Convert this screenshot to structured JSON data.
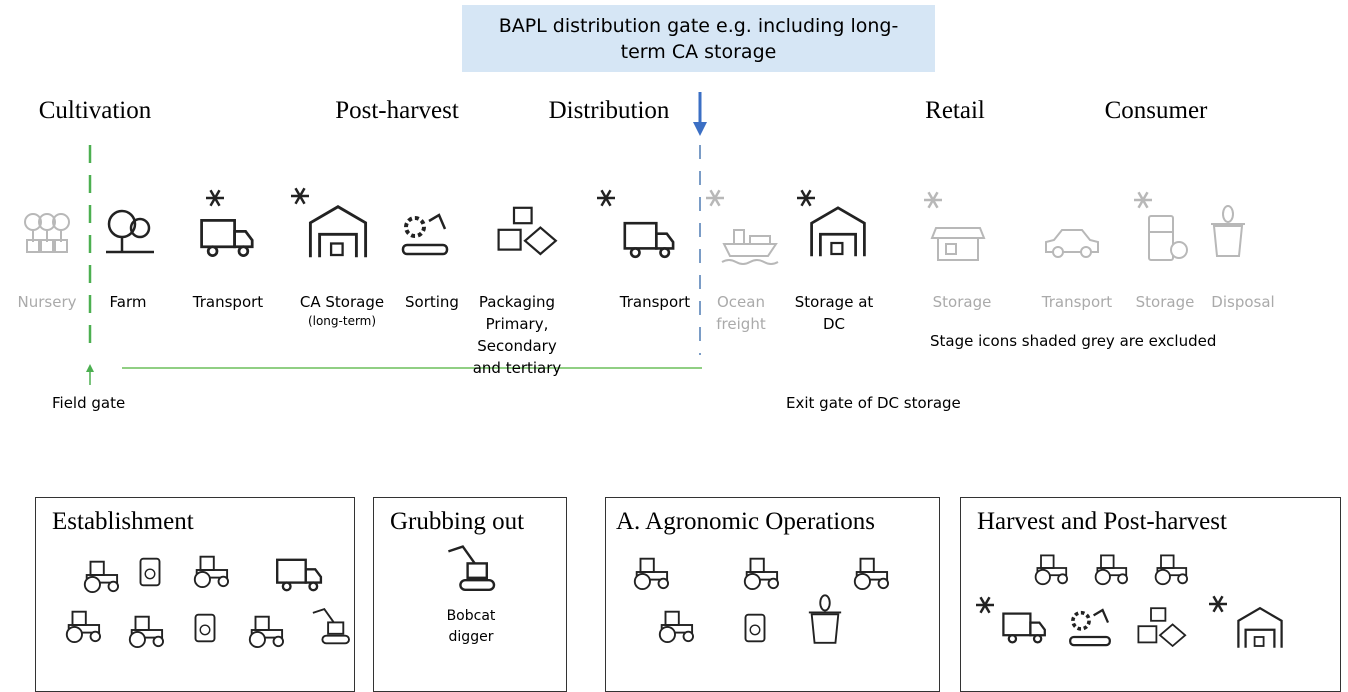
{
  "top_box": "BAPL distribution gate e.g. including long-term CA storage",
  "phases": [
    "Cultivation",
    "Post-harvest",
    "Distribution",
    "Retail",
    "Consumer"
  ],
  "stages": [
    {
      "label": "Nursery"
    },
    {
      "label": "Farm"
    },
    {
      "label": "Transport"
    },
    {
      "label": "CA Storage",
      "sublabel": "(long-term)"
    },
    {
      "label": "Sorting"
    },
    {
      "label": "Packaging Primary, Secondary and tertiary"
    },
    {
      "label": "Transport"
    },
    {
      "label": "Ocean freight"
    },
    {
      "label": "Storage at DC"
    },
    {
      "label": "Storage"
    },
    {
      "label": "Transport"
    },
    {
      "label": "Storage"
    },
    {
      "label": "Disposal"
    }
  ],
  "note": "Stage icons shaded grey are excluded",
  "field_gate": "Field gate",
  "exit_gate": "Exit gate of DC storage",
  "boxes": [
    {
      "title": "Establishment"
    },
    {
      "title": "Grubbing out",
      "items": [
        "Bobcat digger"
      ]
    },
    {
      "title": "A. Agronomic Operations"
    },
    {
      "title": "Harvest and Post-harvest"
    }
  ]
}
